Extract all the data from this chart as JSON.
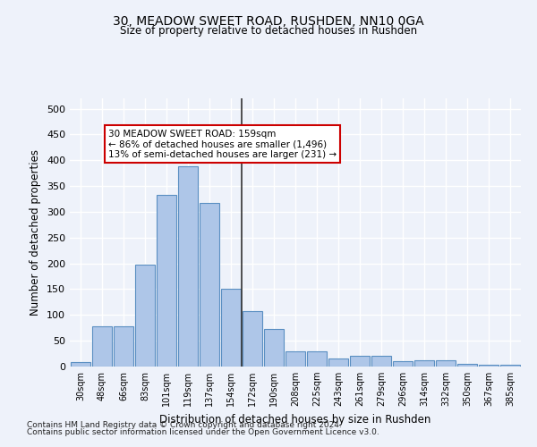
{
  "title": "30, MEADOW SWEET ROAD, RUSHDEN, NN10 0GA",
  "subtitle": "Size of property relative to detached houses in Rushden",
  "xlabel": "Distribution of detached houses by size in Rushden",
  "ylabel": "Number of detached properties",
  "categories": [
    "30sqm",
    "48sqm",
    "66sqm",
    "83sqm",
    "101sqm",
    "119sqm",
    "137sqm",
    "154sqm",
    "172sqm",
    "190sqm",
    "208sqm",
    "225sqm",
    "243sqm",
    "261sqm",
    "279sqm",
    "296sqm",
    "314sqm",
    "332sqm",
    "350sqm",
    "367sqm",
    "385sqm"
  ],
  "values": [
    8,
    78,
    78,
    198,
    332,
    388,
    318,
    150,
    107,
    72,
    30,
    30,
    15,
    20,
    20,
    10,
    12,
    12,
    5,
    4,
    3
  ],
  "bar_color": "#aec6e8",
  "bar_edge_color": "#5a8fc2",
  "vline_x": 7.5,
  "annotation_text": "30 MEADOW SWEET ROAD: 159sqm\n← 86% of detached houses are smaller (1,496)\n13% of semi-detached houses are larger (231) →",
  "annotation_box_color": "#ffffff",
  "annotation_box_edge_color": "#cc0000",
  "ylim": [
    0,
    520
  ],
  "yticks": [
    0,
    50,
    100,
    150,
    200,
    250,
    300,
    350,
    400,
    450,
    500
  ],
  "background_color": "#eef2fa",
  "grid_color": "#ffffff",
  "footer_line1": "Contains HM Land Registry data © Crown copyright and database right 2024.",
  "footer_line2": "Contains public sector information licensed under the Open Government Licence v3.0."
}
